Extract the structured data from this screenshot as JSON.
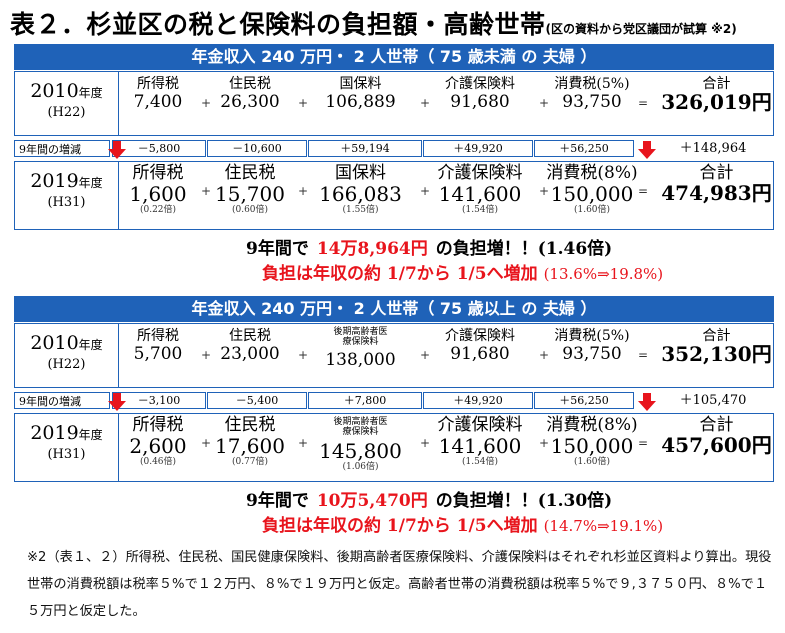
{
  "title": {
    "main": "表２．杉並区の税と保険料の負担額・高齢世帯",
    "sub": "(区の資料から党区議団が試算 ※2)"
  },
  "sections": [
    {
      "banner": "年金収入 240 万円・ 2 人世帯（ 75 歳未満 の 夫婦 ）",
      "row2010": {
        "year": "2010",
        "year_suffix": "年度",
        "era": "(H22)",
        "labels": [
          "所得税",
          "住民税",
          "国保料",
          "介護保険料",
          "消費税(5%)",
          "合計"
        ],
        "values": [
          "7,400",
          "26,300",
          "106,889",
          "91,680",
          "93,750",
          "326,019円"
        ]
      },
      "diff": {
        "label": "9年間の増減",
        "values": [
          "－5,800",
          "－10,600",
          "＋59,194",
          "＋49,920",
          "＋56,250"
        ],
        "total": "＋148,964"
      },
      "row2019": {
        "year": "2019",
        "year_suffix": "年度",
        "era": "(H31)",
        "labels": [
          "所得税",
          "住民税",
          "国保料",
          "介護保険料",
          "消費税(8%)",
          "合計"
        ],
        "values": [
          "1,600",
          "15,700",
          "166,083",
          "141,600",
          "150,000",
          "474,983円"
        ],
        "ratios": [
          "(0.22倍)",
          "(0.60倍)",
          "(1.55倍)",
          "(1.54倍)",
          "(1.60倍)"
        ]
      },
      "summary_prefix": "9年間で",
      "summary_amount": "14万8,964円",
      "summary_suffix": "の負担増！！(1.46倍)",
      "summary2_text": "負担は年収の約 1/7から 1/5へ増加",
      "summary2_range": "(13.6%⇒19.8%)"
    },
    {
      "banner": "年金収入 240 万円・ 2 人世帯（ 75 歳以上 の 夫婦 ）",
      "row2010": {
        "year": "2010",
        "year_suffix": "年度",
        "era": "(H22)",
        "labels": [
          "所得税",
          "住民税",
          "後期高齢者医療保険料",
          "介護保険料",
          "消費税(5%)",
          "合計"
        ],
        "values": [
          "5,700",
          "23,000",
          "138,000",
          "91,680",
          "93,750",
          "352,130円"
        ]
      },
      "diff": {
        "label": "9年間の増減",
        "values": [
          "－3,100",
          "－5,400",
          "＋7,800",
          "＋49,920",
          "＋56,250"
        ],
        "total": "＋105,470"
      },
      "row2019": {
        "year": "2019",
        "year_suffix": "年度",
        "era": "(H31)",
        "labels": [
          "所得税",
          "住民税",
          "後期高齢者医療保険料",
          "介護保険料",
          "消費税(8%)",
          "合計"
        ],
        "values": [
          "2,600",
          "17,600",
          "145,800",
          "141,600",
          "150,000",
          "457,600円"
        ],
        "ratios": [
          "(0.46倍)",
          "(0.77倍)",
          "(1.06倍)",
          "(1.54倍)",
          "(1.60倍)"
        ]
      },
      "summary_prefix": "9年間で",
      "summary_amount": "10万5,470円",
      "summary_suffix": "の負担増！！(1.30倍)",
      "summary2_text": "負担は年収の約 1/7から 1/5へ増加",
      "summary2_range": "(14.7%⇒19.1%)"
    }
  ],
  "operators": {
    "plus": "+",
    "equals": "="
  },
  "footnote": "※2（表１、２）所得税、住民税、国民健康保険料、後期高齢者医療保険料、介護保険料はそれぞれ杉並区資料より算出。現役世帯の消費税額は税率５%で１２万円、８%で１９万円と仮定。高齢者世帯の消費税額は税率５%で９,３７５０円、８%で１５万円と仮定した。",
  "colors": {
    "banner_blue": "#1f62b8",
    "accent_red": "#e8141c"
  }
}
